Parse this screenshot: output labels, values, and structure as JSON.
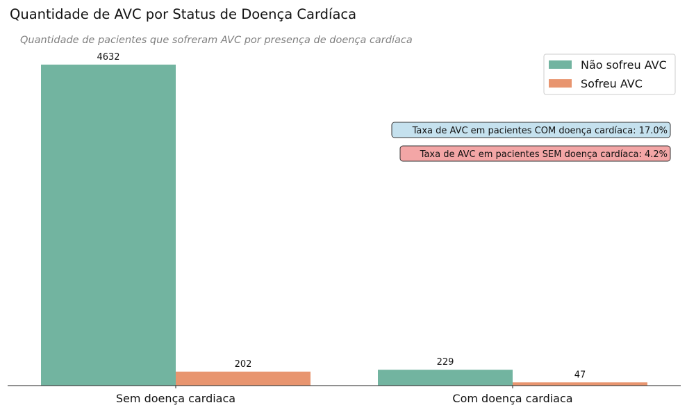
{
  "chart_data": {
    "type": "bar",
    "title": "Quantidade de AVC por Status de Doença Cardíaca",
    "subtitle": "Quantidade de pacientes que sofreram AVC por presença de doença cardíaca",
    "categories": [
      "Sem doença cardiaca",
      "Com doença cardiaca"
    ],
    "series": [
      {
        "name": "Não sofreu AVC",
        "values": [
          4632,
          229
        ],
        "color": "#72b4a0"
      },
      {
        "name": "Sofreu AVC",
        "values": [
          202,
          47
        ],
        "color": "#e8956f"
      }
    ],
    "ylim": [
      0,
      4632
    ],
    "grid": false,
    "legend": "top-right",
    "annotations": [
      {
        "text": "Taxa de AVC em pacientes COM doença cardíaca: 17.0%",
        "background": "#c5e1ee"
      },
      {
        "text": "Taxa de AVC em pacientes SEM doença cardíaca: 4.2%",
        "background": "#f3a6a6"
      }
    ]
  }
}
